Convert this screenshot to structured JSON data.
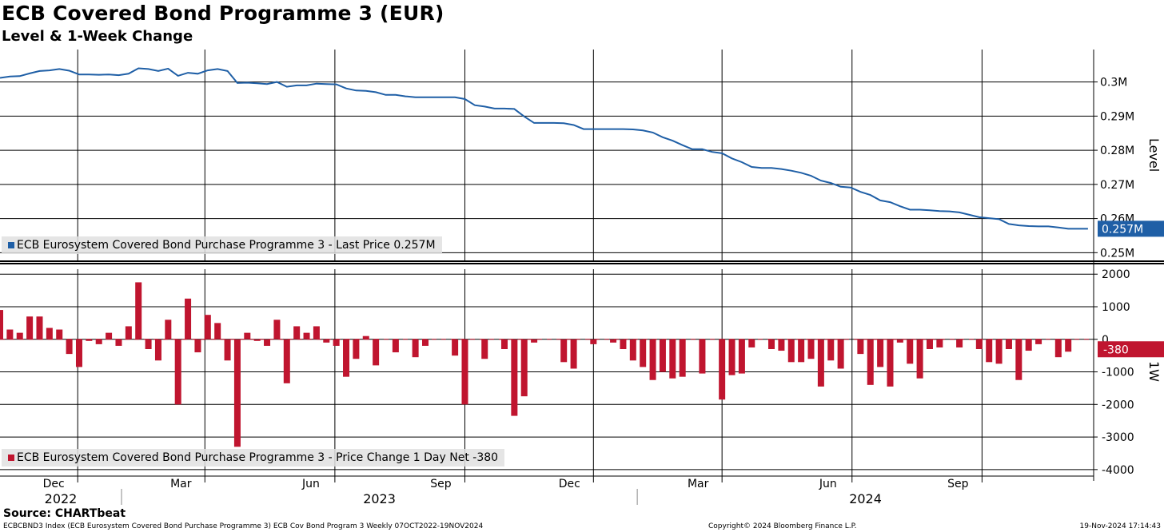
{
  "title": "ECB Covered Bond Programme 3 (EUR)",
  "subtitle": "Level & 1-Week Change",
  "source": "Source: CHARTbeat",
  "footer": {
    "left": "ECBCBND3 Index (ECB Eurosystem Covered Bond Purchase Programme 3) ECB Cov Bond Program 3  Weekly 07OCT2022-19NOV2024",
    "middle": "Copyright© 2024 Bloomberg Finance L.P.",
    "right": "19-Nov-2024 17:14:43"
  },
  "colors": {
    "level_line": "#1f5fa6",
    "change_bar": "#c0152f",
    "grid": "#000000",
    "legend_bg": "#e1e1e1"
  },
  "chart_data": [
    {
      "type": "line",
      "panel": "top",
      "ylabel": "Level",
      "ylim": [
        0.2475,
        0.3095
      ],
      "yticks": [
        0.25,
        0.26,
        0.27,
        0.28,
        0.29,
        0.3
      ],
      "ytick_labels": [
        "0.25M",
        "0.26M",
        "0.27M",
        "0.28M",
        "0.29M",
        "0.3M"
      ],
      "last_value_label": "0.257M",
      "legend": "ECB Eurosystem Covered Bond Purchase Programme 3 - Last Price 0.257M",
      "x_start": "2022-10-07",
      "x_end": "2024-11-19",
      "series": [
        {
          "name": "ECB Eurosystem Covered Bond Purchase Programme 3 - Last Price",
          "x": [
            "2022-10-07",
            "2022-10-14",
            "2022-10-21",
            "2022-10-28",
            "2022-11-04",
            "2022-11-11",
            "2022-11-18",
            "2022-11-25",
            "2022-12-02",
            "2022-12-09",
            "2022-12-16",
            "2022-12-23",
            "2022-12-30",
            "2023-01-06",
            "2023-01-13",
            "2023-01-20",
            "2023-01-27",
            "2023-02-03",
            "2023-02-10",
            "2023-02-17",
            "2023-02-24",
            "2023-03-03",
            "2023-03-10",
            "2023-03-17",
            "2023-03-24",
            "2023-03-31",
            "2023-04-07",
            "2023-04-14",
            "2023-04-21",
            "2023-04-28",
            "2023-05-05",
            "2023-05-12",
            "2023-05-19",
            "2023-05-26",
            "2023-06-02",
            "2023-06-09",
            "2023-06-16",
            "2023-06-23",
            "2023-06-30",
            "2023-07-07",
            "2023-07-14",
            "2023-07-21",
            "2023-07-28",
            "2023-08-04",
            "2023-08-11",
            "2023-08-18",
            "2023-08-25",
            "2023-09-01",
            "2023-09-08",
            "2023-09-15",
            "2023-09-22",
            "2023-09-29",
            "2023-10-06",
            "2023-10-13",
            "2023-10-20",
            "2023-10-27",
            "2023-11-03",
            "2023-11-10",
            "2023-11-17",
            "2023-11-24",
            "2023-12-01",
            "2023-12-08",
            "2023-12-15",
            "2023-12-22",
            "2023-12-29",
            "2024-01-05",
            "2024-01-12",
            "2024-01-19",
            "2024-01-26",
            "2024-02-02",
            "2024-02-09",
            "2024-02-16",
            "2024-02-23",
            "2024-03-01",
            "2024-03-08",
            "2024-03-15",
            "2024-03-22",
            "2024-03-29",
            "2024-04-05",
            "2024-04-12",
            "2024-04-19",
            "2024-04-26",
            "2024-05-03",
            "2024-05-10",
            "2024-05-17",
            "2024-05-24",
            "2024-05-31",
            "2024-06-07",
            "2024-06-14",
            "2024-06-21",
            "2024-06-28",
            "2024-07-05",
            "2024-07-12",
            "2024-07-19",
            "2024-07-26",
            "2024-08-02",
            "2024-08-09",
            "2024-08-16",
            "2024-08-23",
            "2024-08-30",
            "2024-09-06",
            "2024-09-13",
            "2024-09-20",
            "2024-09-27",
            "2024-10-04",
            "2024-10-11",
            "2024-10-18",
            "2024-10-25",
            "2024-11-01",
            "2024-11-08",
            "2024-11-15"
          ],
          "values": [
            0.3012,
            0.3016,
            0.3017,
            0.3025,
            0.3032,
            0.3034,
            0.3038,
            0.3033,
            0.3022,
            0.3022,
            0.3021,
            0.3022,
            0.302,
            0.3024,
            0.304,
            0.3038,
            0.3032,
            0.3039,
            0.3018,
            0.3027,
            0.3024,
            0.3034,
            0.3038,
            0.3032,
            0.2997,
            0.2998,
            0.2996,
            0.2994,
            0.3,
            0.2986,
            0.299,
            0.299,
            0.2995,
            0.2994,
            0.2993,
            0.2981,
            0.2975,
            0.2974,
            0.297,
            0.2962,
            0.2962,
            0.2958,
            0.2955,
            0.2955,
            0.2955,
            0.2955,
            0.2955,
            0.295,
            0.2932,
            0.2928,
            0.2922,
            0.2922,
            0.2921,
            0.2899,
            0.288,
            0.288,
            0.288,
            0.2879,
            0.2874,
            0.2862,
            0.2862,
            0.2862,
            0.2862,
            0.2862,
            0.2861,
            0.2858,
            0.2852,
            0.2838,
            0.2828,
            0.2815,
            0.2803,
            0.2803,
            0.2795,
            0.2791,
            0.2776,
            0.2765,
            0.2751,
            0.2748,
            0.2748,
            0.2745,
            0.274,
            0.2734,
            0.2725,
            0.2711,
            0.2704,
            0.2693,
            0.2691,
            0.2678,
            0.2669,
            0.2653,
            0.2648,
            0.2636,
            0.2626,
            0.2626,
            0.2624,
            0.2622,
            0.2621,
            0.2618,
            0.2611,
            0.2604,
            0.2601,
            0.2598,
            0.2584,
            0.258,
            0.2578,
            0.2577,
            0.2577,
            0.2574,
            0.257,
            0.257,
            0.257
          ]
        }
      ]
    },
    {
      "type": "bar",
      "panel": "bottom",
      "ylabel": "1W",
      "ylim": [
        -4200,
        2300
      ],
      "yticks": [
        2000,
        1000,
        0,
        -1000,
        -2000,
        -3000,
        -4000
      ],
      "ytick_labels": [
        "2000",
        "1000",
        "0",
        "-1000",
        "-2000",
        "-3000",
        "-4000"
      ],
      "last_value_label": "-380",
      "legend": "ECB Eurosystem Covered Bond Purchase Programme 3 - Price Change 1 Day Net -380",
      "series": [
        {
          "name": "ECB Eurosystem Covered Bond Purchase Programme 3 - Price Change 1 Day Net",
          "values": [
            900,
            300,
            200,
            700,
            700,
            350,
            300,
            -450,
            -850,
            -50,
            -150,
            200,
            -200,
            400,
            1750,
            -300,
            -650,
            600,
            -2000,
            1250,
            -400,
            750,
            500,
            -650,
            -3300,
            200,
            -50,
            -200,
            600,
            -1350,
            400,
            200,
            400,
            -100,
            -200,
            -1150,
            -600,
            100,
            -800,
            0,
            -400,
            0,
            -550,
            -200,
            0,
            0,
            -500,
            -2000,
            0,
            -600,
            0,
            -300,
            -2350,
            -1750,
            -100,
            0,
            0,
            -700,
            -900,
            0,
            -150,
            0,
            -100,
            -300,
            -650,
            -850,
            -1250,
            -1000,
            -1200,
            -1150,
            0,
            -1050,
            0,
            -1850,
            -1100,
            -1050,
            -250,
            0,
            -300,
            -350,
            -700,
            -700,
            -600,
            -1450,
            -650,
            -900,
            0,
            -450,
            -1400,
            -850,
            -1450,
            -100,
            -750,
            -1200,
            -300,
            -250,
            0,
            -250,
            0,
            -300,
            -700,
            -750,
            -300,
            -1250,
            -350,
            -150,
            0,
            -550,
            -380
          ]
        }
      ]
    }
  ],
  "x_axis": {
    "months": [
      {
        "date": "2022-12-01",
        "label": "Dec"
      },
      {
        "date": "2023-03-01",
        "label": "Mar"
      },
      {
        "date": "2023-06-01",
        "label": "Jun"
      },
      {
        "date": "2023-09-01",
        "label": "Sep"
      },
      {
        "date": "2023-12-01",
        "label": "Dec"
      },
      {
        "date": "2024-03-01",
        "label": "Mar"
      },
      {
        "date": "2024-06-01",
        "label": "Jun"
      },
      {
        "date": "2024-09-01",
        "label": "Sep"
      }
    ],
    "years": [
      {
        "label": "2022",
        "from": "2022-10-07",
        "to": "2023-01-01"
      },
      {
        "label": "2023",
        "from": "2023-01-01",
        "to": "2024-01-01"
      },
      {
        "label": "2024",
        "from": "2024-01-01",
        "to": "2024-11-19"
      }
    ]
  }
}
